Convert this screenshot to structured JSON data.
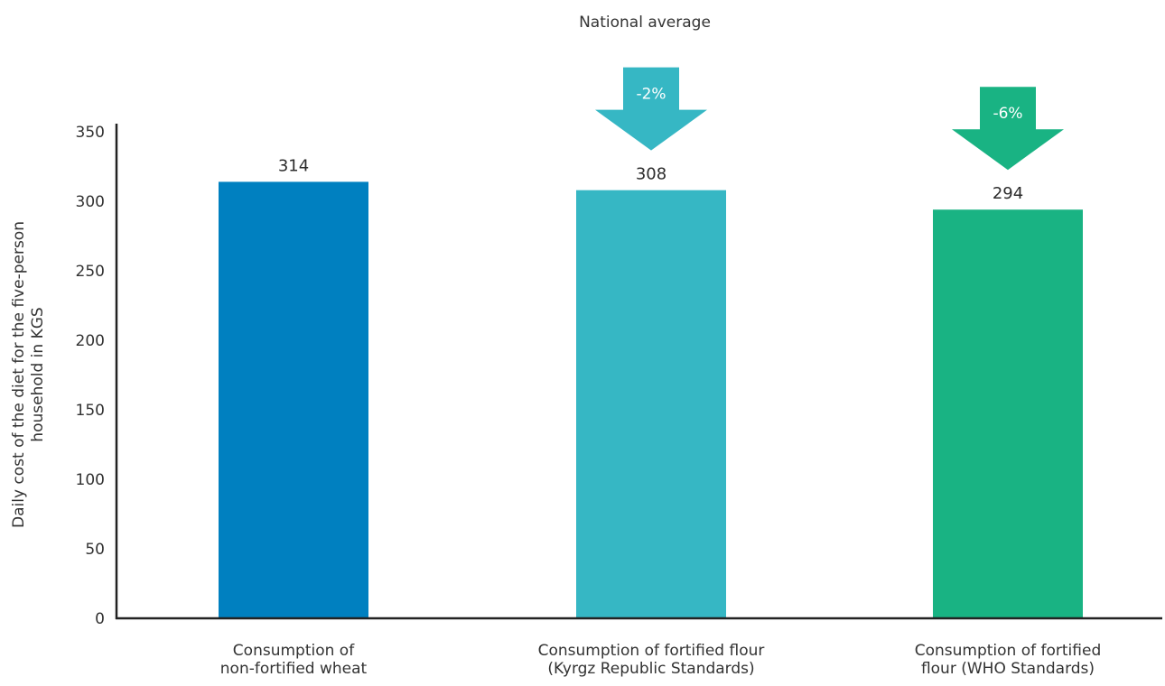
{
  "chart_data": {
    "type": "bar",
    "title": "National average",
    "ylabel_lines": [
      "Daily cost of the diet for the five-person",
      "household in KGS"
    ],
    "xlabel": "",
    "ylim": [
      0,
      350
    ],
    "yticks": [
      0,
      50,
      100,
      150,
      200,
      250,
      300,
      350
    ],
    "grid": false,
    "legend": "none",
    "categories": [
      [
        "Consumption of",
        "non-fortified wheat"
      ],
      [
        "Consumption of fortified flour",
        "(Kyrgz Republic Standards)"
      ],
      [
        "Consumption of fortified",
        "flour (WHO Standards)"
      ]
    ],
    "values": [
      314,
      308,
      294
    ],
    "value_labels": [
      "314",
      "308",
      "294"
    ],
    "colors": [
      "#0080C0",
      "#36B7C4",
      "#19B383"
    ],
    "annotations": [
      null,
      {
        "type": "arrow-down",
        "label": "-2%"
      },
      {
        "type": "arrow-down",
        "label": "-6%"
      }
    ]
  }
}
